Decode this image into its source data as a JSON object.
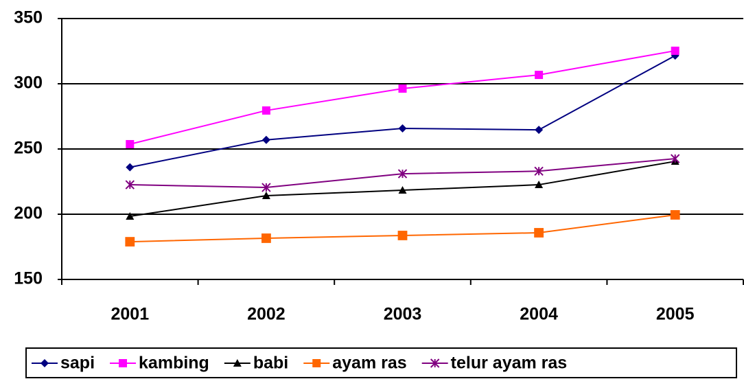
{
  "chart_data": {
    "type": "line",
    "categories": [
      "2001",
      "2002",
      "2003",
      "2004",
      "2005"
    ],
    "series": [
      {
        "name": "sapi",
        "color": "#000080",
        "marker": "diamond",
        "values": [
          236,
          257,
          265.8,
          264.7,
          321.6
        ]
      },
      {
        "name": "kambing",
        "color": "#ff00ff",
        "marker": "square",
        "values": [
          253.7,
          279.5,
          296.3,
          306.8,
          325.3
        ]
      },
      {
        "name": "babi",
        "color": "#000000",
        "marker": "triangle",
        "values": [
          198.4,
          214.2,
          218.4,
          222.6,
          240.5
        ]
      },
      {
        "name": "ayam ras",
        "color": "#ff6600",
        "marker": "square",
        "values": [
          178.9,
          181.6,
          183.7,
          185.8,
          199.5
        ]
      },
      {
        "name": "telur ayam ras",
        "color": "#800080",
        "marker": "star",
        "values": [
          222.6,
          220.5,
          231,
          233,
          242.6
        ]
      }
    ],
    "ylim": [
      150,
      350
    ],
    "yticks": [
      150,
      200,
      250,
      300,
      350
    ],
    "grid": true,
    "legend": "bottom"
  }
}
